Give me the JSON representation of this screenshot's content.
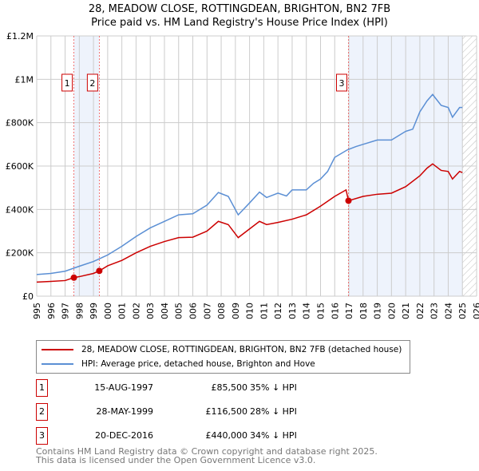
{
  "chart_data": {
    "type": "line",
    "title": "28, MEADOW CLOSE, ROTTINGDEAN, BRIGHTON, BN2 7FB",
    "subtitle": "Price paid vs. HM Land Registry's House Price Index (HPI)",
    "xlim": [
      1995,
      2026
    ],
    "ylim": [
      0,
      1200000
    ],
    "x_ticks": [
      "1995",
      "1996",
      "1997",
      "1998",
      "1999",
      "2000",
      "2001",
      "2002",
      "2003",
      "2004",
      "2005",
      "2006",
      "2007",
      "2008",
      "2009",
      "2010",
      "2011",
      "2012",
      "2013",
      "2014",
      "2015",
      "2016",
      "2017",
      "2018",
      "2019",
      "2020",
      "2021",
      "2022",
      "2023",
      "2024",
      "2025",
      "2026"
    ],
    "y_ticks": [
      {
        "v": 0,
        "label": "£0"
      },
      {
        "v": 200000,
        "label": "£200K"
      },
      {
        "v": 400000,
        "label": "£400K"
      },
      {
        "v": 600000,
        "label": "£600K"
      },
      {
        "v": 800000,
        "label": "£800K"
      },
      {
        "v": 1000000,
        "label": "£1M"
      },
      {
        "v": 1200000,
        "label": "£1.2M"
      }
    ],
    "grid": true,
    "shaded_regions": [
      [
        1997.62,
        1999.41
      ],
      [
        2016.97,
        2025.0
      ]
    ],
    "hatched_region": [
      2025.0,
      2026
    ],
    "series": [
      {
        "name": "28, MEADOW CLOSE, ROTTINGDEAN, BRIGHTON, BN2 7FB (detached house)",
        "color": "#cc0000",
        "x": [
          1995,
          1996,
          1997,
          1997.62,
          1998,
          1999,
          1999.41,
          2000,
          2001,
          2002,
          2003,
          2004,
          2005,
          2006,
          2007,
          2007.8,
          2008.5,
          2009.2,
          2010,
          2010.7,
          2011.2,
          2012,
          2013,
          2014,
          2015,
          2016,
          2016.8,
          2016.97,
          2018,
          2019,
          2020,
          2021,
          2022,
          2022.5,
          2022.9,
          2023.5,
          2024,
          2024.3,
          2024.8,
          2025
        ],
        "y": [
          65000,
          68000,
          72000,
          85500,
          90000,
          105000,
          116500,
          140000,
          165000,
          200000,
          230000,
          252000,
          270000,
          272000,
          300000,
          345000,
          330000,
          270000,
          310000,
          345000,
          330000,
          340000,
          355000,
          375000,
          415000,
          460000,
          490000,
          440000,
          460000,
          470000,
          475000,
          505000,
          555000,
          590000,
          610000,
          580000,
          575000,
          540000,
          575000,
          570000
        ]
      },
      {
        "name": "HPI: Average price, detached house, Brighton and Hove",
        "color": "#5b8fd4",
        "x": [
          1995,
          1996,
          1997,
          1998,
          1999,
          2000,
          2001,
          2002,
          2003,
          2004,
          2005,
          2006,
          2007,
          2007.8,
          2008.5,
          2009.2,
          2010,
          2010.7,
          2011.2,
          2012,
          2012.6,
          2013,
          2014,
          2014.5,
          2015,
          2015.5,
          2016,
          2016.9,
          2017.5,
          2018,
          2019,
          2020,
          2021,
          2021.5,
          2022,
          2022.5,
          2022.9,
          2023.5,
          2024,
          2024.3,
          2024.8,
          2025
        ],
        "y": [
          100000,
          105000,
          115000,
          138000,
          160000,
          190000,
          230000,
          275000,
          315000,
          345000,
          375000,
          380000,
          420000,
          478000,
          460000,
          375000,
          430000,
          480000,
          455000,
          475000,
          462000,
          490000,
          490000,
          520000,
          540000,
          575000,
          640000,
          675000,
          690000,
          700000,
          720000,
          720000,
          760000,
          770000,
          850000,
          900000,
          930000,
          880000,
          870000,
          825000,
          870000,
          870000
        ]
      }
    ],
    "sales": [
      {
        "id": "1",
        "date": "15-AUG-1997",
        "price": "£85,500",
        "hpi": "35% ↓ HPI",
        "x": 1997.62,
        "y": 85500
      },
      {
        "id": "2",
        "date": "28-MAY-1999",
        "price": "£116,500",
        "hpi": "28% ↓ HPI",
        "x": 1999.41,
        "y": 116500
      },
      {
        "id": "3",
        "date": "20-DEC-2016",
        "price": "£440,000",
        "hpi": "34% ↓ HPI",
        "x": 2016.97,
        "y": 440000
      }
    ]
  },
  "legend": {
    "property": "28, MEADOW CLOSE, ROTTINGDEAN, BRIGHTON, BN2 7FB (detached house)",
    "hpi": "HPI: Average price, detached house, Brighton and Hove"
  },
  "footer": {
    "line1": "Contains HM Land Registry data © Crown copyright and database right 2025.",
    "line2": "This data is licensed under the Open Government Licence v3.0."
  }
}
